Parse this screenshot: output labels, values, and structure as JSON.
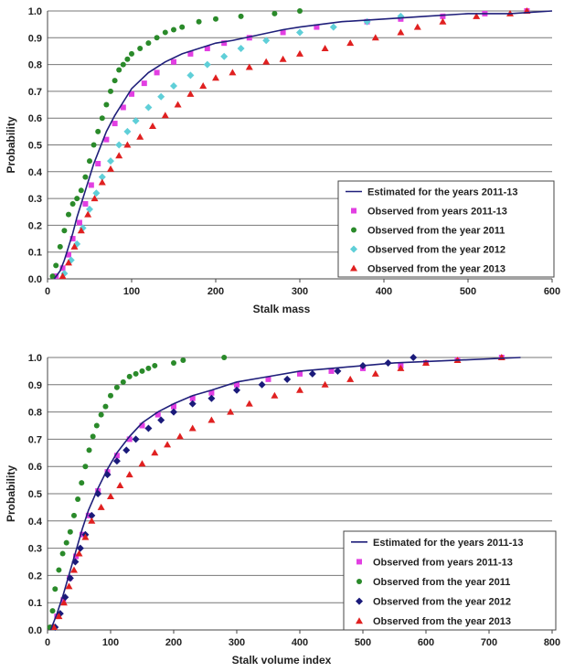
{
  "chart_data": [
    {
      "type": "scatter",
      "xlabel": "Stalk mass",
      "ylabel": "Probability",
      "xlim": [
        0,
        600
      ],
      "ylim": [
        0,
        1.0
      ],
      "xticks": [
        "0",
        "100",
        "200",
        "300",
        "400",
        "500",
        "600"
      ],
      "yticks": [
        "0.0",
        "0.1",
        "0.2",
        "0.3",
        "0.4",
        "0.5",
        "0.6",
        "0.7",
        "0.8",
        "0.9",
        "1.0"
      ],
      "grid": "horizontal",
      "legend_position": "bottom-right",
      "series": [
        {
          "name": "Estimated for the years 2011-13",
          "marker": "line",
          "color": "#1f1f7a",
          "x": [
            8,
            15,
            20,
            25,
            30,
            35,
            40,
            45,
            50,
            55,
            60,
            70,
            80,
            90,
            100,
            120,
            140,
            160,
            180,
            200,
            220,
            250,
            280,
            300,
            350,
            400,
            450,
            500,
            550,
            600
          ],
          "y": [
            0.0,
            0.03,
            0.07,
            0.12,
            0.17,
            0.23,
            0.28,
            0.33,
            0.38,
            0.43,
            0.47,
            0.55,
            0.61,
            0.66,
            0.71,
            0.77,
            0.81,
            0.84,
            0.86,
            0.88,
            0.89,
            0.91,
            0.93,
            0.94,
            0.96,
            0.97,
            0.98,
            0.99,
            0.99,
            1.0
          ]
        },
        {
          "name": "Observed from years 2011-13",
          "marker": "square",
          "color": "#e23fe2",
          "x": [
            10,
            18,
            25,
            30,
            38,
            45,
            52,
            60,
            70,
            80,
            90,
            100,
            115,
            130,
            150,
            170,
            190,
            210,
            240,
            280,
            320,
            380,
            420,
            470,
            520,
            570
          ],
          "y": [
            0.01,
            0.04,
            0.09,
            0.15,
            0.21,
            0.28,
            0.35,
            0.43,
            0.52,
            0.58,
            0.64,
            0.69,
            0.73,
            0.77,
            0.81,
            0.84,
            0.86,
            0.88,
            0.9,
            0.92,
            0.94,
            0.96,
            0.97,
            0.98,
            0.99,
            1.0
          ]
        },
        {
          "name": "Observed from the year 2011",
          "marker": "circle",
          "color": "#2a8a2a",
          "x": [
            6,
            10,
            15,
            20,
            25,
            30,
            35,
            40,
            45,
            50,
            55,
            60,
            65,
            70,
            75,
            80,
            85,
            90,
            95,
            100,
            110,
            120,
            130,
            140,
            150,
            160,
            180,
            200,
            230,
            270,
            300
          ],
          "y": [
            0.01,
            0.05,
            0.12,
            0.18,
            0.24,
            0.28,
            0.3,
            0.33,
            0.38,
            0.44,
            0.5,
            0.55,
            0.6,
            0.65,
            0.7,
            0.74,
            0.78,
            0.8,
            0.82,
            0.84,
            0.86,
            0.88,
            0.9,
            0.92,
            0.93,
            0.94,
            0.96,
            0.97,
            0.98,
            0.99,
            1.0
          ]
        },
        {
          "name": "Observed from the year 2012",
          "marker": "diamond",
          "color": "#5fcfd8",
          "x": [
            20,
            28,
            35,
            42,
            50,
            58,
            65,
            75,
            85,
            95,
            105,
            120,
            135,
            150,
            170,
            190,
            210,
            230,
            260,
            300,
            340,
            380,
            420
          ],
          "y": [
            0.02,
            0.07,
            0.13,
            0.19,
            0.26,
            0.32,
            0.38,
            0.44,
            0.5,
            0.55,
            0.59,
            0.64,
            0.68,
            0.72,
            0.76,
            0.8,
            0.83,
            0.86,
            0.89,
            0.92,
            0.94,
            0.96,
            0.98
          ]
        },
        {
          "name": "Observed from the year 2013",
          "marker": "triangle",
          "color": "#e02020",
          "x": [
            18,
            25,
            32,
            40,
            48,
            56,
            65,
            75,
            85,
            95,
            110,
            125,
            140,
            155,
            170,
            185,
            200,
            220,
            240,
            260,
            280,
            300,
            330,
            360,
            390,
            420,
            440,
            470,
            510,
            550,
            570
          ],
          "y": [
            0.01,
            0.06,
            0.12,
            0.18,
            0.24,
            0.3,
            0.36,
            0.41,
            0.46,
            0.5,
            0.53,
            0.57,
            0.61,
            0.65,
            0.69,
            0.72,
            0.75,
            0.77,
            0.79,
            0.81,
            0.82,
            0.84,
            0.86,
            0.88,
            0.9,
            0.92,
            0.94,
            0.96,
            0.98,
            0.99,
            1.0
          ]
        }
      ]
    },
    {
      "type": "scatter",
      "xlabel": "Stalk volume index",
      "ylabel": "Probability",
      "xlim": [
        0,
        800
      ],
      "ylim": [
        0,
        1.0
      ],
      "xticks": [
        "0",
        "100",
        "200",
        "300",
        "400",
        "500",
        "600",
        "700",
        "800"
      ],
      "yticks": [
        "0.0",
        "0.1",
        "0.2",
        "0.3",
        "0.4",
        "0.5",
        "0.6",
        "0.7",
        "0.8",
        "0.9",
        "1.0"
      ],
      "grid": "horizontal",
      "legend_position": "bottom-right",
      "series": [
        {
          "name": "Estimated for the years  2011-13",
          "marker": "line",
          "color": "#1f1f7a",
          "x": [
            5,
            15,
            25,
            35,
            45,
            55,
            65,
            80,
            95,
            110,
            130,
            150,
            175,
            200,
            230,
            260,
            300,
            350,
            400,
            450,
            500,
            550,
            600,
            650,
            700,
            750
          ],
          "y": [
            0.0,
            0.06,
            0.13,
            0.21,
            0.29,
            0.37,
            0.44,
            0.52,
            0.59,
            0.65,
            0.71,
            0.76,
            0.8,
            0.83,
            0.86,
            0.88,
            0.91,
            0.93,
            0.95,
            0.96,
            0.97,
            0.98,
            0.985,
            0.99,
            0.995,
            1.0
          ]
        },
        {
          "name": "Observed from years 2011-13",
          "marker": "square",
          "color": "#e23fe2",
          "x": [
            8,
            15,
            25,
            35,
            45,
            55,
            65,
            80,
            95,
            110,
            130,
            150,
            175,
            200,
            230,
            260,
            300,
            350,
            400,
            450,
            500,
            560,
            600,
            650,
            720
          ],
          "y": [
            0.01,
            0.05,
            0.11,
            0.19,
            0.27,
            0.35,
            0.42,
            0.51,
            0.58,
            0.64,
            0.7,
            0.75,
            0.79,
            0.82,
            0.85,
            0.87,
            0.9,
            0.92,
            0.94,
            0.95,
            0.96,
            0.97,
            0.98,
            0.99,
            1.0
          ]
        },
        {
          "name": "Observed from the year 2011",
          "marker": "circle",
          "color": "#2a8a2a",
          "x": [
            4,
            8,
            12,
            18,
            24,
            30,
            36,
            42,
            48,
            54,
            60,
            66,
            72,
            78,
            85,
            92,
            100,
            110,
            120,
            130,
            140,
            150,
            160,
            170,
            200,
            215,
            280
          ],
          "y": [
            0.01,
            0.07,
            0.15,
            0.22,
            0.28,
            0.32,
            0.36,
            0.42,
            0.48,
            0.54,
            0.6,
            0.66,
            0.71,
            0.75,
            0.79,
            0.82,
            0.86,
            0.89,
            0.91,
            0.93,
            0.94,
            0.95,
            0.96,
            0.97,
            0.98,
            0.99,
            1.0
          ]
        },
        {
          "name": "Observed from the year 2012",
          "marker": "diamond",
          "color": "#1a1a7a",
          "x": [
            12,
            20,
            28,
            36,
            44,
            52,
            60,
            70,
            80,
            95,
            110,
            125,
            140,
            160,
            180,
            200,
            230,
            260,
            300,
            340,
            380,
            420,
            460,
            500,
            540,
            580
          ],
          "y": [
            0.01,
            0.06,
            0.12,
            0.19,
            0.25,
            0.3,
            0.35,
            0.42,
            0.5,
            0.57,
            0.62,
            0.66,
            0.7,
            0.74,
            0.77,
            0.8,
            0.83,
            0.85,
            0.88,
            0.9,
            0.92,
            0.94,
            0.95,
            0.97,
            0.98,
            1.0
          ]
        },
        {
          "name": "Observed from the year 2013",
          "marker": "triangle",
          "color": "#e02020",
          "x": [
            10,
            18,
            26,
            34,
            42,
            50,
            60,
            70,
            85,
            100,
            115,
            130,
            150,
            170,
            190,
            210,
            230,
            260,
            290,
            320,
            360,
            400,
            440,
            480,
            520,
            560,
            600,
            650,
            720
          ],
          "y": [
            0.01,
            0.05,
            0.1,
            0.16,
            0.22,
            0.28,
            0.34,
            0.4,
            0.45,
            0.49,
            0.53,
            0.57,
            0.61,
            0.65,
            0.68,
            0.71,
            0.74,
            0.77,
            0.8,
            0.83,
            0.86,
            0.88,
            0.9,
            0.92,
            0.94,
            0.96,
            0.98,
            0.99,
            1.0
          ]
        }
      ]
    }
  ]
}
